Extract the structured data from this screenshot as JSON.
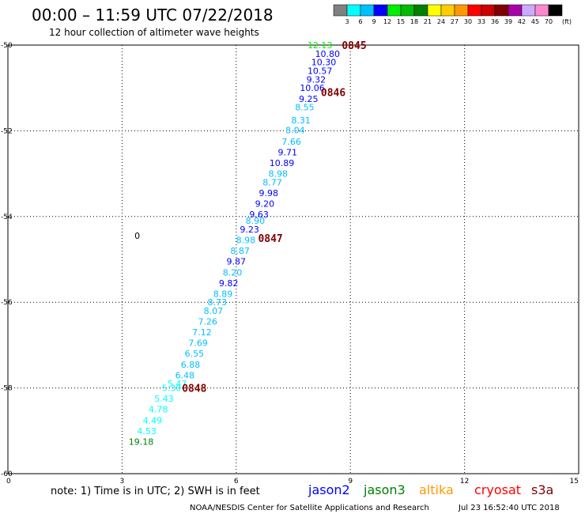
{
  "header": {
    "title": "00:00 – 11:59 UTC 07/22/2018",
    "subtitle": "12 hour collection of altimeter wave heights"
  },
  "legend": {
    "unit": "(ft)",
    "labels": [
      "3",
      "6",
      "9",
      "12",
      "15",
      "18",
      "21",
      "24",
      "27",
      "30",
      "33",
      "36",
      "39",
      "42",
      "45",
      "70"
    ],
    "colors": [
      "#808080",
      "#00ffff",
      "#00bfff",
      "#0000ff",
      "#00ee00",
      "#00bb00",
      "#008000",
      "#ffff00",
      "#ffcc00",
      "#ff9900",
      "#ff0000",
      "#cc0000",
      "#800000",
      "#aa00aa",
      "#ccaaff",
      "#ff88cc",
      "#000000"
    ]
  },
  "footer": {
    "note": "note: 1) Time is in UTC; 2) SWH is in feet",
    "satellites": [
      {
        "name": "jason2",
        "color": "#0000ff"
      },
      {
        "name": "jason3",
        "color": "#008000"
      },
      {
        "name": "altika",
        "color": "#ff9900"
      },
      {
        "name": "cryosat",
        "color": "#ff0000"
      },
      {
        "name": "s3a",
        "color": "#800000"
      }
    ],
    "credit": "NOAA/NESDIS Center for Satellite Applications and Research",
    "timestamp": "Jul 23 16:52:40 UTC 2018"
  },
  "chart_data": {
    "type": "scatter",
    "xlim": [
      0,
      15
    ],
    "ylim": [
      -60,
      -50
    ],
    "x_ticks": [
      "0",
      "3",
      "6",
      "9",
      "12",
      "15"
    ],
    "y_ticks": [
      "-50",
      "-52",
      "-54",
      "-56",
      "-58",
      "-60"
    ],
    "grid": true,
    "points": [
      {
        "x": 8.2,
        "y": -50.0,
        "label": "12.13",
        "color": "#00ee00"
      },
      {
        "x": 8.4,
        "y": -50.2,
        "label": "10.80",
        "color": "#0000ff"
      },
      {
        "x": 8.3,
        "y": -50.4,
        "label": "10.30",
        "color": "#0000ff"
      },
      {
        "x": 8.2,
        "y": -50.6,
        "label": "10.57",
        "color": "#0000ff"
      },
      {
        "x": 8.1,
        "y": -50.8,
        "label": "9.32",
        "color": "#0000ff"
      },
      {
        "x": 8.0,
        "y": -51.0,
        "label": "10.06",
        "color": "#0000ff"
      },
      {
        "x": 7.9,
        "y": -51.25,
        "label": "9.25",
        "color": "#0000ff"
      },
      {
        "x": 7.8,
        "y": -51.45,
        "label": "8.55",
        "color": "#00bfff"
      },
      {
        "x": 7.7,
        "y": -51.75,
        "label": "8.31",
        "color": "#00bfff"
      },
      {
        "x": 7.55,
        "y": -51.98,
        "label": "8.04",
        "color": "#00bfff"
      },
      {
        "x": 7.45,
        "y": -52.25,
        "label": "7.66",
        "color": "#00bfff"
      },
      {
        "x": 7.35,
        "y": -52.5,
        "label": "9.71",
        "color": "#0000ff"
      },
      {
        "x": 7.2,
        "y": -52.75,
        "label": "10.89",
        "color": "#0000ff"
      },
      {
        "x": 7.1,
        "y": -53.0,
        "label": "8.98",
        "color": "#00bfff"
      },
      {
        "x": 6.95,
        "y": -53.2,
        "label": "8.77",
        "color": "#00bfff"
      },
      {
        "x": 6.85,
        "y": -53.45,
        "label": "9.98",
        "color": "#0000ff"
      },
      {
        "x": 6.75,
        "y": -53.7,
        "label": "9.20",
        "color": "#0000ff"
      },
      {
        "x": 6.6,
        "y": -53.95,
        "label": "9.63",
        "color": "#0000ff"
      },
      {
        "x": 6.5,
        "y": -54.1,
        "label": "8.90",
        "color": "#00bfff"
      },
      {
        "x": 6.35,
        "y": -54.3,
        "label": "9.23",
        "color": "#0000ff"
      },
      {
        "x": 6.25,
        "y": -54.55,
        "label": "8.98",
        "color": "#00bfff"
      },
      {
        "x": 6.1,
        "y": -54.8,
        "label": "8.87",
        "color": "#00bfff"
      },
      {
        "x": 6.0,
        "y": -55.05,
        "label": "9.87",
        "color": "#0000ff"
      },
      {
        "x": 5.9,
        "y": -55.3,
        "label": "8.20",
        "color": "#00bfff"
      },
      {
        "x": 5.8,
        "y": -55.55,
        "label": "9.82",
        "color": "#0000ff"
      },
      {
        "x": 5.65,
        "y": -55.8,
        "label": "8.89",
        "color": "#00bfff"
      },
      {
        "x": 5.5,
        "y": -56.0,
        "label": "8.73",
        "color": "#00bfff"
      },
      {
        "x": 5.4,
        "y": -56.2,
        "label": "8.07",
        "color": "#00bfff"
      },
      {
        "x": 5.25,
        "y": -56.45,
        "label": "7.26",
        "color": "#00bfff"
      },
      {
        "x": 5.1,
        "y": -56.7,
        "label": "7.12",
        "color": "#00bfff"
      },
      {
        "x": 5.0,
        "y": -56.95,
        "label": "7.69",
        "color": "#00bfff"
      },
      {
        "x": 4.9,
        "y": -57.2,
        "label": "6.55",
        "color": "#00bfff"
      },
      {
        "x": 4.8,
        "y": -57.45,
        "label": "6.88",
        "color": "#00bfff"
      },
      {
        "x": 4.65,
        "y": -57.7,
        "label": "6.48",
        "color": "#00bfff"
      },
      {
        "x": 4.45,
        "y": -57.9,
        "label": "5.47",
        "color": "#00ffff"
      },
      {
        "x": 4.3,
        "y": -58.0,
        "label": "5.30",
        "color": "#00ffff"
      },
      {
        "x": 4.1,
        "y": -58.25,
        "label": "5.43",
        "color": "#00ffff"
      },
      {
        "x": 3.95,
        "y": -58.5,
        "label": "4.78",
        "color": "#00ffff"
      },
      {
        "x": 3.8,
        "y": -58.75,
        "label": "4.49",
        "color": "#00ffff"
      },
      {
        "x": 3.65,
        "y": -59.0,
        "label": "4.53",
        "color": "#00ffff"
      },
      {
        "x": 3.5,
        "y": -59.25,
        "label": "19.18",
        "color": "#008000"
      }
    ],
    "time_labels": [
      {
        "x": 9.1,
        "y": -50.0,
        "label": "0845"
      },
      {
        "x": 8.55,
        "y": -51.1,
        "label": "0846"
      },
      {
        "x": 6.9,
        "y": -54.5,
        "label": "0847"
      },
      {
        "x": 4.9,
        "y": -58.0,
        "label": "0848"
      }
    ],
    "extra_labels": [
      {
        "x": 3.4,
        "y": -54.45,
        "label": "0"
      }
    ]
  }
}
